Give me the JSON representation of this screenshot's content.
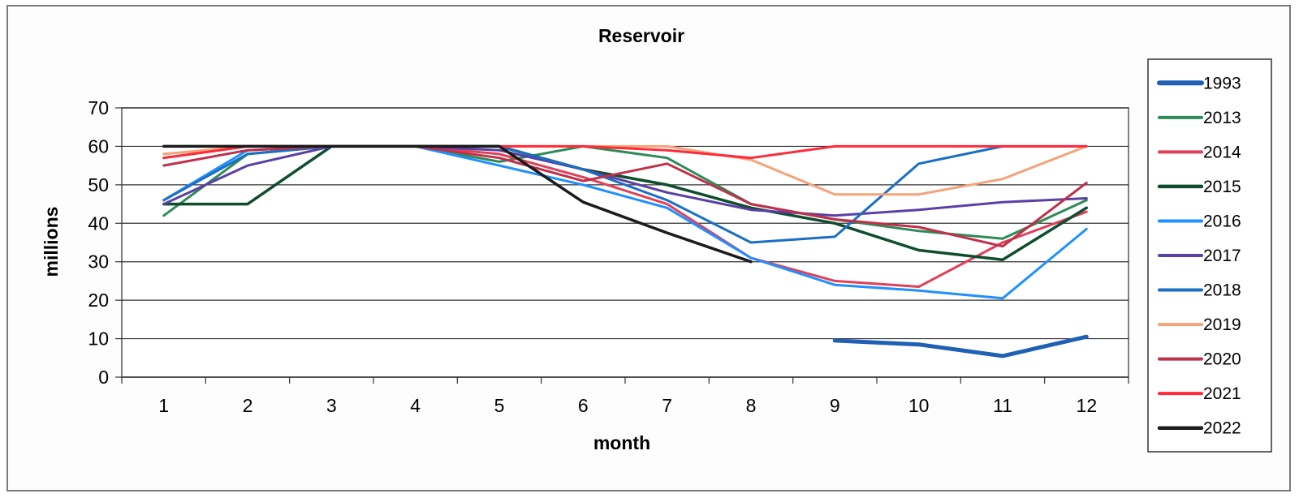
{
  "chart_data": {
    "type": "line",
    "title": "Reservoir",
    "xlabel": "month",
    "ylabel": "millions",
    "x": [
      1,
      2,
      3,
      4,
      5,
      6,
      7,
      8,
      9,
      10,
      11,
      12
    ],
    "xlim": [
      0.5,
      12.5
    ],
    "ylim": [
      0,
      70
    ],
    "y_ticks": [
      0,
      10,
      20,
      30,
      40,
      50,
      60,
      70
    ],
    "grid": true,
    "legend_position": "right",
    "series": [
      {
        "name": "1993",
        "color": "#1f5fb4",
        "width": 5,
        "values": [
          null,
          null,
          null,
          null,
          null,
          null,
          null,
          null,
          9.5,
          8.5,
          5.5,
          10.5
        ]
      },
      {
        "name": "2013",
        "color": "#2e8b57",
        "width": 3,
        "values": [
          42,
          58,
          60,
          60,
          56,
          60,
          57,
          45,
          41,
          38,
          36,
          46
        ]
      },
      {
        "name": "2014",
        "color": "#e0405a",
        "width": 3,
        "values": [
          57,
          60,
          60,
          60,
          58,
          52,
          45,
          31,
          25,
          23.5,
          35,
          43
        ]
      },
      {
        "name": "2015",
        "color": "#0f4d2e",
        "width": 3.5,
        "values": [
          45,
          45,
          60,
          60,
          60,
          54,
          50,
          44,
          40,
          33,
          30.5,
          44
        ]
      },
      {
        "name": "2016",
        "color": "#1e90ff",
        "width": 3,
        "values": [
          46,
          59,
          60,
          60,
          55,
          50,
          44,
          31,
          24,
          22.5,
          20.5,
          38.5
        ]
      },
      {
        "name": "2017",
        "color": "#5a3fa6",
        "width": 3,
        "values": [
          45,
          55,
          60,
          60,
          59,
          54,
          48,
          43.5,
          42,
          43.5,
          45.5,
          46.5
        ]
      },
      {
        "name": "2018",
        "color": "#1a6fc4",
        "width": 3,
        "values": [
          46,
          58,
          60,
          60,
          60,
          54,
          46,
          35,
          36.5,
          55.5,
          60,
          60
        ]
      },
      {
        "name": "2019",
        "color": "#f4a37a",
        "width": 3,
        "values": [
          58,
          60,
          60,
          60,
          60,
          60,
          60,
          56.5,
          47.5,
          47.5,
          51.5,
          60
        ]
      },
      {
        "name": "2020",
        "color": "#c0304a",
        "width": 3,
        "values": [
          55,
          59,
          60,
          60,
          57,
          51,
          55.5,
          45,
          41,
          39,
          34,
          50.5
        ]
      },
      {
        "name": "2021",
        "color": "#ff2a3a",
        "width": 3,
        "values": [
          57,
          60,
          60,
          60,
          60,
          60,
          59,
          57,
          60,
          60,
          60,
          60
        ]
      },
      {
        "name": "2022",
        "color": "#1b1b1b",
        "width": 3.5,
        "values": [
          60,
          60,
          60,
          60,
          60,
          45.5,
          37.5,
          30,
          null,
          null,
          null,
          null
        ]
      }
    ]
  }
}
